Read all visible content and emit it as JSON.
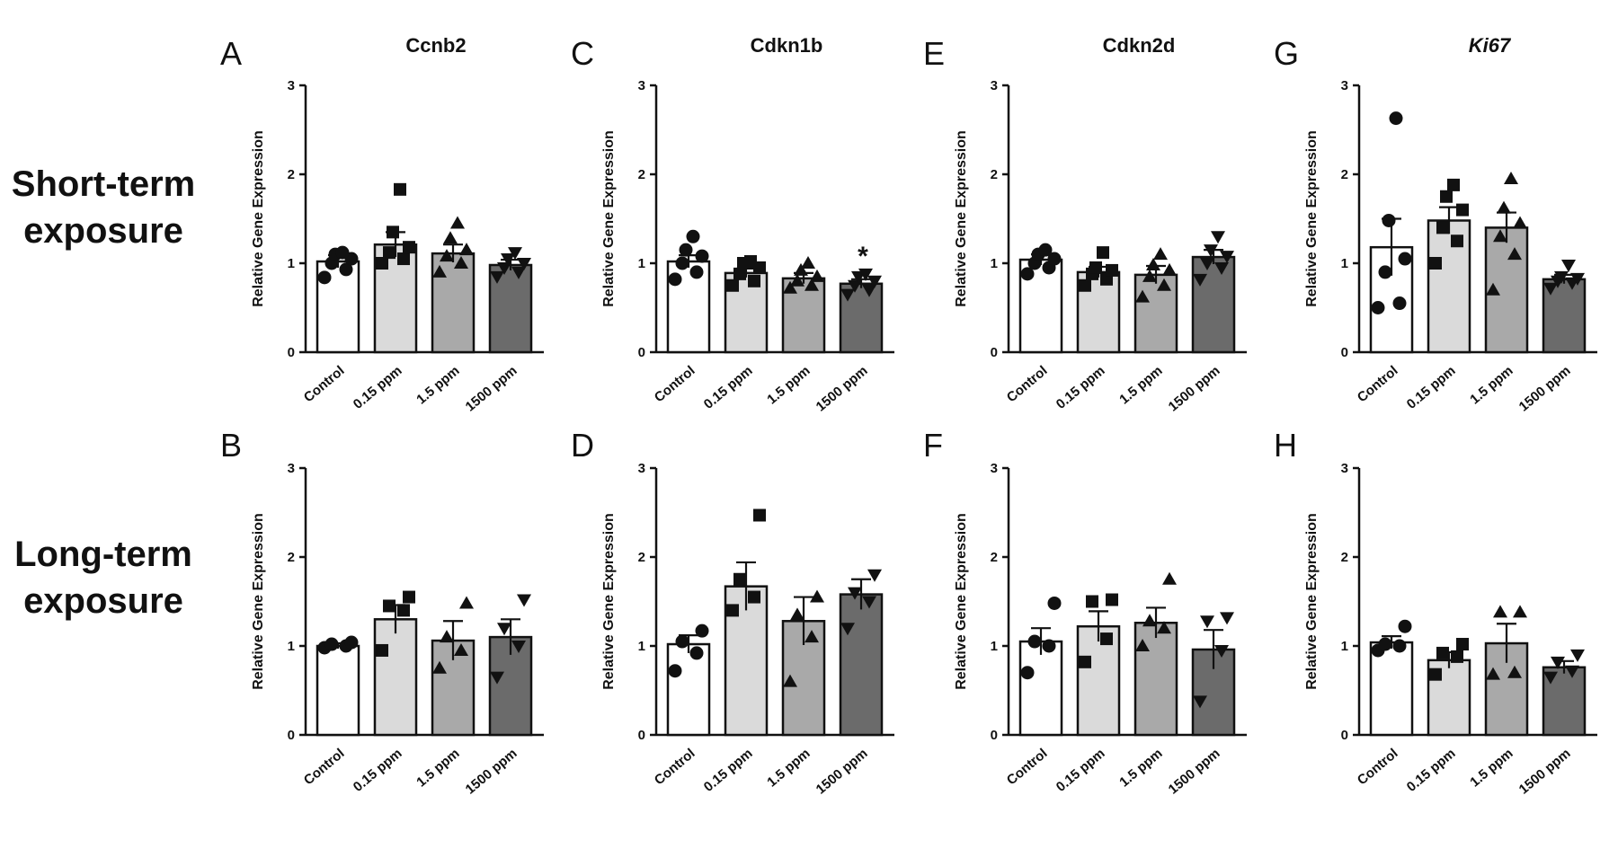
{
  "figure": {
    "row_labels": [
      {
        "lines": [
          "Short-term",
          "exposure"
        ]
      },
      {
        "lines": [
          "Long-term",
          "exposure"
        ]
      }
    ],
    "bar_colors": [
      "#ffffff",
      "#dadada",
      "#a9a9a9",
      "#6b6b6b"
    ],
    "marker_shapes": [
      "circle",
      "square",
      "triangle-up",
      "triangle-down"
    ]
  },
  "chart_data": [
    {
      "panel": "A",
      "type": "bar",
      "title": "Ccnb2",
      "title_italic": false,
      "ylabel": "Relative Gene Expression",
      "ylim": [
        0,
        3
      ],
      "yticks": [
        "0",
        "1",
        "2",
        "3"
      ],
      "categories": [
        "Control",
        "0.15 ppm",
        "1.5 ppm",
        "1500 ppm"
      ],
      "values": [
        1.02,
        1.21,
        1.11,
        0.98
      ],
      "sem": [
        0.07,
        0.14,
        0.1,
        0.06
      ],
      "points": [
        [
          0.84,
          0.93,
          1.0,
          1.05,
          1.1,
          1.12
        ],
        [
          1.0,
          1.05,
          1.12,
          1.18,
          1.35,
          1.83
        ],
        [
          0.9,
          1.0,
          1.08,
          1.15,
          1.28,
          1.45
        ],
        [
          0.85,
          0.9,
          0.95,
          1.0,
          1.05,
          1.12
        ]
      ],
      "significance": [
        "",
        "",
        "",
        ""
      ]
    },
    {
      "panel": "B",
      "type": "bar",
      "title": "",
      "title_italic": false,
      "ylabel": "Relative Gene Expression",
      "ylim": [
        0,
        3
      ],
      "yticks": [
        "0",
        "1",
        "2",
        "3"
      ],
      "categories": [
        "Control",
        "0.15 ppm",
        "1.5 ppm",
        "1500 ppm"
      ],
      "values": [
        1.0,
        1.3,
        1.06,
        1.1
      ],
      "sem": [
        0.03,
        0.16,
        0.22,
        0.2
      ],
      "points": [
        [
          0.98,
          1.0,
          1.02,
          1.04
        ],
        [
          0.95,
          1.4,
          1.45,
          1.55
        ],
        [
          0.75,
          0.95,
          1.1,
          1.48
        ],
        [
          0.65,
          1.0,
          1.2,
          1.52
        ]
      ],
      "significance": [
        "",
        "",
        "",
        ""
      ]
    },
    {
      "panel": "C",
      "type": "bar",
      "title": "Cdkn1b",
      "title_italic": false,
      "ylabel": "Relative Gene Expression",
      "ylim": [
        0,
        3
      ],
      "yticks": [
        "0",
        "1",
        "2",
        "3"
      ],
      "categories": [
        "Control",
        "0.15 ppm",
        "1.5 ppm",
        "1500 ppm"
      ],
      "values": [
        1.02,
        0.89,
        0.83,
        0.77
      ],
      "sem": [
        0.07,
        0.05,
        0.06,
        0.05
      ],
      "points": [
        [
          0.82,
          0.9,
          1.0,
          1.08,
          1.15,
          1.3
        ],
        [
          0.75,
          0.8,
          0.88,
          0.95,
          1.0,
          1.02
        ],
        [
          0.72,
          0.75,
          0.8,
          0.85,
          0.92,
          1.0
        ],
        [
          0.65,
          0.7,
          0.75,
          0.8,
          0.85,
          0.88
        ]
      ],
      "significance": [
        "",
        "",
        "",
        "*"
      ]
    },
    {
      "panel": "D",
      "type": "bar",
      "title": "",
      "title_italic": false,
      "ylabel": "Relative Gene Expression",
      "ylim": [
        0,
        3
      ],
      "yticks": [
        "0",
        "1",
        "2",
        "3"
      ],
      "categories": [
        "Control",
        "0.15 ppm",
        "1.5 ppm",
        "1500 ppm"
      ],
      "values": [
        1.02,
        1.67,
        1.28,
        1.58
      ],
      "sem": [
        0.1,
        0.27,
        0.27,
        0.17
      ],
      "points": [
        [
          0.72,
          0.92,
          1.05,
          1.17
        ],
        [
          1.4,
          1.55,
          1.75,
          2.47
        ],
        [
          0.6,
          1.1,
          1.35,
          1.55
        ],
        [
          1.2,
          1.5,
          1.6,
          1.8
        ]
      ],
      "significance": [
        "",
        "",
        "",
        ""
      ]
    },
    {
      "panel": "E",
      "type": "bar",
      "title": "Cdkn2d",
      "title_italic": false,
      "ylabel": "Relative Gene Expression",
      "ylim": [
        0,
        3
      ],
      "yticks": [
        "0",
        "1",
        "2",
        "3"
      ],
      "categories": [
        "Control",
        "0.15 ppm",
        "1.5 ppm",
        "1500 ppm"
      ],
      "values": [
        1.04,
        0.9,
        0.87,
        1.07
      ],
      "sem": [
        0.06,
        0.06,
        0.1,
        0.08
      ],
      "points": [
        [
          0.88,
          0.95,
          1.0,
          1.05,
          1.1,
          1.15
        ],
        [
          0.75,
          0.82,
          0.88,
          0.92,
          0.95,
          1.12
        ],
        [
          0.62,
          0.75,
          0.85,
          0.92,
          0.98,
          1.1
        ],
        [
          0.82,
          0.95,
          1.0,
          1.08,
          1.15,
          1.3
        ]
      ],
      "significance": [
        "",
        "",
        "",
        ""
      ]
    },
    {
      "panel": "F",
      "type": "bar",
      "title": "",
      "title_italic": false,
      "ylabel": "Relative Gene Expression",
      "ylim": [
        0,
        3
      ],
      "yticks": [
        "0",
        "1",
        "2",
        "3"
      ],
      "categories": [
        "Control",
        "0.15 ppm",
        "1.5 ppm",
        "1500 ppm"
      ],
      "values": [
        1.05,
        1.22,
        1.26,
        0.96
      ],
      "sem": [
        0.15,
        0.17,
        0.17,
        0.22
      ],
      "points": [
        [
          0.7,
          1.0,
          1.05,
          1.48
        ],
        [
          0.82,
          1.08,
          1.5,
          1.52
        ],
        [
          1.0,
          1.2,
          1.28,
          1.75
        ],
        [
          0.38,
          0.95,
          1.28,
          1.32
        ]
      ],
      "significance": [
        "",
        "",
        "",
        ""
      ]
    },
    {
      "panel": "G",
      "type": "bar",
      "title": "Ki67",
      "title_italic": true,
      "ylabel": "Relative Gene Expression",
      "ylim": [
        0,
        3
      ],
      "yticks": [
        "0",
        "1",
        "2",
        "3"
      ],
      "categories": [
        "Control",
        "0.15 ppm",
        "1.5 ppm",
        "1500 ppm"
      ],
      "values": [
        1.18,
        1.48,
        1.4,
        0.82
      ],
      "sem": [
        0.32,
        0.15,
        0.17,
        0.05
      ],
      "points": [
        [
          0.5,
          0.55,
          0.9,
          1.05,
          1.48,
          2.63
        ],
        [
          1.0,
          1.25,
          1.4,
          1.6,
          1.75,
          1.88
        ],
        [
          0.7,
          1.1,
          1.3,
          1.45,
          1.62,
          1.95
        ],
        [
          0.72,
          0.78,
          0.8,
          0.83,
          0.85,
          0.98
        ]
      ],
      "significance": [
        "",
        "",
        "",
        ""
      ]
    },
    {
      "panel": "H",
      "type": "bar",
      "title": "",
      "title_italic": false,
      "ylabel": "Relative Gene Expression",
      "ylim": [
        0,
        3
      ],
      "yticks": [
        "0",
        "1",
        "2",
        "3"
      ],
      "categories": [
        "Control",
        "0.15 ppm",
        "1.5 ppm",
        "1500 ppm"
      ],
      "values": [
        1.04,
        0.84,
        1.03,
        0.76
      ],
      "sem": [
        0.07,
        0.09,
        0.22,
        0.07
      ],
      "points": [
        [
          0.95,
          1.0,
          1.02,
          1.22
        ],
        [
          0.68,
          0.88,
          0.92,
          1.02
        ],
        [
          0.68,
          0.7,
          1.38,
          1.38
        ],
        [
          0.65,
          0.72,
          0.82,
          0.9
        ]
      ],
      "significance": [
        "",
        "",
        "",
        ""
      ]
    }
  ]
}
